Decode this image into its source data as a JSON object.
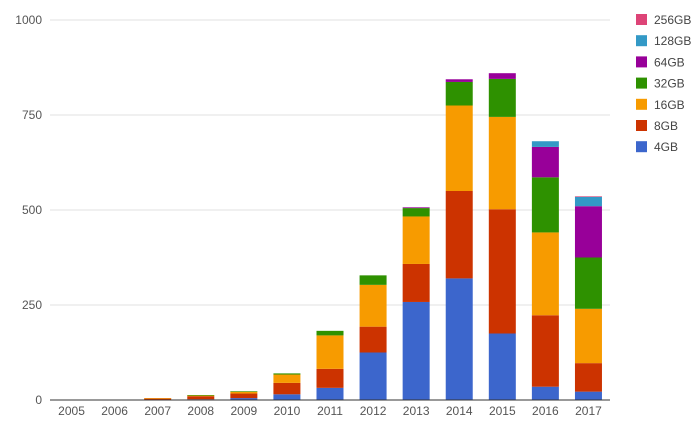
{
  "chart_data": {
    "type": "bar",
    "stacked": true,
    "categories": [
      "2005",
      "2006",
      "2007",
      "2008",
      "2009",
      "2010",
      "2011",
      "2012",
      "2013",
      "2014",
      "2015",
      "2016",
      "2017"
    ],
    "ylim": [
      0,
      1000
    ],
    "yticks": [
      0,
      250,
      500,
      750,
      1000
    ],
    "ytick_labels": [
      "0",
      "250",
      "500",
      "750",
      "1000"
    ],
    "grid": true,
    "legend_position": "right",
    "series": [
      {
        "name": "4GB",
        "color": "#3c66cc",
        "values": [
          0,
          0,
          1,
          2,
          5,
          15,
          32,
          125,
          258,
          320,
          175,
          35,
          22
        ]
      },
      {
        "name": "8GB",
        "color": "#cc3300",
        "values": [
          0,
          1,
          3,
          8,
          12,
          30,
          50,
          68,
          100,
          230,
          327,
          188,
          75
        ]
      },
      {
        "name": "16GB",
        "color": "#f79b00",
        "values": [
          0,
          0,
          1,
          2,
          5,
          22,
          88,
          110,
          125,
          225,
          243,
          218,
          143
        ]
      },
      {
        "name": "32GB",
        "color": "#2e9100",
        "values": [
          0,
          0,
          0,
          1,
          1,
          3,
          12,
          25,
          22,
          62,
          100,
          145,
          135
        ]
      },
      {
        "name": "64GB",
        "color": "#980099",
        "values": [
          0,
          0,
          0,
          0,
          0,
          0,
          0,
          0,
          2,
          7,
          15,
          80,
          135
        ]
      },
      {
        "name": "128GB",
        "color": "#3399c6",
        "values": [
          0,
          0,
          0,
          0,
          0,
          0,
          0,
          0,
          0,
          0,
          0,
          15,
          25
        ]
      },
      {
        "name": "256GB",
        "color": "#dd4477",
        "values": [
          0,
          0,
          0,
          0,
          0,
          0,
          0,
          0,
          0,
          0,
          0,
          0,
          1
        ]
      }
    ]
  }
}
